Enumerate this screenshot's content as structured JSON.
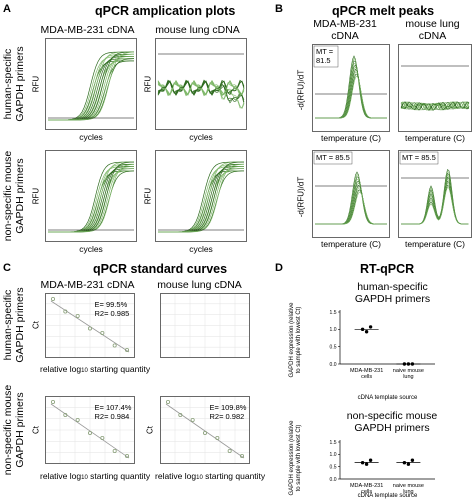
{
  "panels": {
    "A": {
      "letter": "A",
      "title": "qPCR amplication plots",
      "columns": [
        "MDA-MB-231 cDNA",
        "mouse lung cDNA"
      ],
      "rows": [
        [
          "human-specific",
          "GAPDH primers"
        ],
        [
          "non-specific mouse",
          "GAPDH primers"
        ]
      ],
      "y_label": "RFU",
      "x_label": "cycles"
    },
    "B": {
      "letter": "B",
      "title": "qPCR melt peaks",
      "columns": [
        [
          "MDA-MB-231",
          "cDNA"
        ],
        [
          "mouse lung",
          "cDNA"
        ]
      ],
      "y_label": "-d(RFU)/dT",
      "x_label": "temperature (C)",
      "mt_label_1": "MT =",
      "mt_value_1": "81.5",
      "mt_label_2": "MT = 85.5",
      "mt_label_3": "MT = 85.5"
    },
    "C": {
      "letter": "C",
      "title": "qPCR standard curves",
      "columns": [
        "MDA-MB-231 cDNA",
        "mouse lung cDNA"
      ],
      "rows": [
        [
          "human-specific",
          "GAPDH primers"
        ],
        [
          "non-specific mouse",
          "GAPDH primers"
        ]
      ],
      "y_label": "Ct",
      "x_label_prefix": "relative log",
      "x_label_sub": "10",
      "x_label_suffix": " starting quantity",
      "stats": [
        {
          "e": "E= 99.5%",
          "r2": "R2= 0.985"
        },
        {
          "e": "E= 107.4%",
          "r2": "R2= 0.984"
        },
        {
          "e": "E= 109.8%",
          "r2": "R2= 0.982"
        }
      ]
    },
    "D": {
      "letter": "D",
      "title": "RT-qPCR",
      "plots": [
        {
          "subtitle": [
            "human-specific",
            "GAPDH primers"
          ],
          "categories": [
            [
              "MDA-MB-231",
              "cells"
            ],
            [
              "naive mouse",
              "lung"
            ]
          ],
          "values": [
            [
              1.0,
              0.93,
              1.07
            ],
            [
              0.0,
              0.0,
              0.0
            ]
          ],
          "ylim": [
            0,
            1.5
          ],
          "y_ticks": [
            "0.0",
            "0.5",
            "1.0",
            "1.5"
          ]
        },
        {
          "subtitle": [
            "non-specific mouse",
            "GAPDH primers"
          ],
          "categories": [
            [
              "MDA-MB-231",
              "cells"
            ],
            [
              "naive mouse",
              "lung"
            ]
          ],
          "values": [
            [
              0.66,
              0.6,
              0.76
            ],
            [
              0.66,
              0.6,
              0.76
            ]
          ],
          "ylim": [
            0,
            1.5
          ],
          "y_ticks": [
            "0.0",
            "0.5",
            "1.0",
            "1.5"
          ]
        }
      ],
      "y_label": [
        "GAPDH expression (relative",
        "to sample with lowest Ct)"
      ],
      "x_label": "cDNA template source"
    }
  },
  "colors": {
    "curve_dark": "#2e6b1f",
    "curve_light": "#7fb86a",
    "std_point": "#8aa07a",
    "std_line": "#999999",
    "dot": "#000000"
  }
}
